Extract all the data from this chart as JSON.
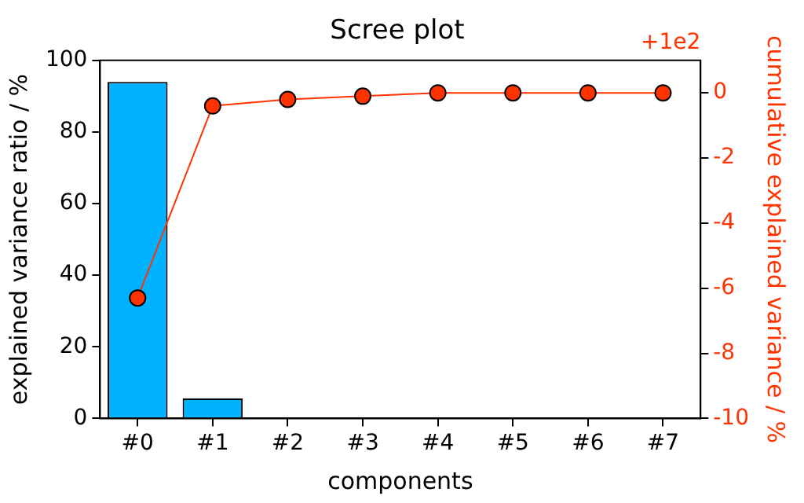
{
  "chart_data": {
    "type": "bar",
    "title": "Scree plot",
    "xlabel": "components",
    "ylabel": "explained variance ratio / %",
    "y2label": "cumulative explained variance / %",
    "categories": [
      "#0",
      "#1",
      "#2",
      "#3",
      "#4",
      "#5",
      "#6",
      "#7"
    ],
    "series": [
      {
        "color": "#00b2ff",
        "values": [
          94,
          5.6,
          0,
          0,
          0,
          0,
          0,
          0
        ]
      },
      {
        "type": "line",
        "axis": "y2",
        "color": "#ff3300",
        "marker": "circle",
        "values": [
          -6.3,
          -0.4,
          -0.2,
          -0.1,
          0,
          0,
          0,
          0
        ]
      }
    ],
    "ylim": [
      0,
      100
    ],
    "yticks": [
      0,
      20,
      40,
      60,
      80,
      100
    ],
    "y2lim": [
      -10,
      1
    ],
    "y2ticks": [
      -10,
      -8,
      -6,
      -4,
      -2,
      0
    ],
    "annotations": [
      "+1e2"
    ],
    "grid": false,
    "legend": false
  }
}
